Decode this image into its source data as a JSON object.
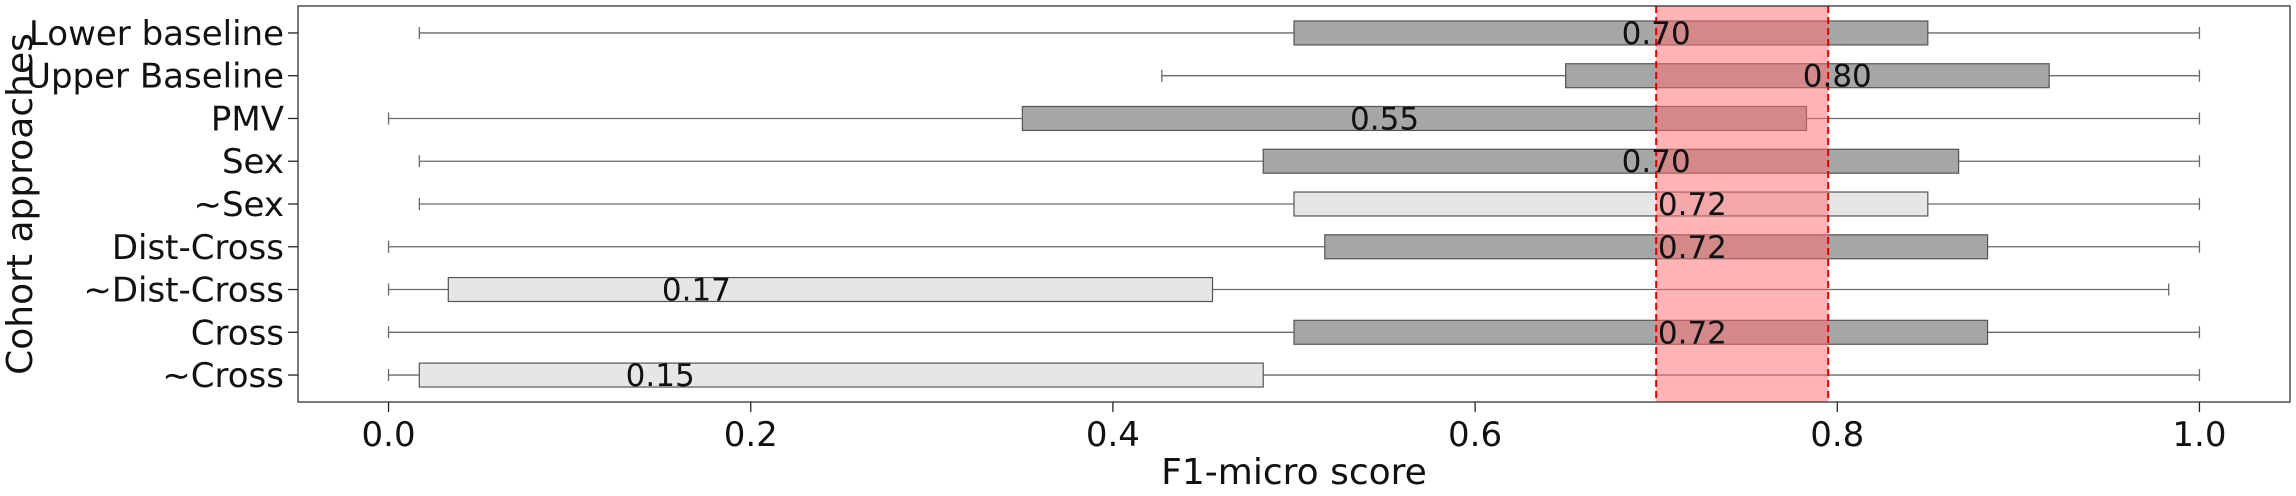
{
  "chart_data": {
    "type": "box",
    "orientation": "horizontal",
    "xlabel": "F1-micro score",
    "ylabel": "Cohort approaches",
    "xlim": [
      -0.05,
      1.05
    ],
    "xticks": [
      0.0,
      0.2,
      0.4,
      0.6,
      0.8,
      1.0
    ],
    "xtick_labels": [
      "0.0",
      "0.2",
      "0.4",
      "0.6",
      "0.8",
      "1.0"
    ],
    "highlight_band": {
      "x0": 0.7,
      "x1": 0.795,
      "color": "#ff6b6b"
    },
    "colors": {
      "dark_box": "#a6a6a6",
      "light_box": "#e6e6e6",
      "band_line": "#e00000"
    },
    "series": [
      {
        "label": "Lower baseline",
        "whisker_low": 0.017,
        "q1": 0.5,
        "q3": 0.85,
        "whisker_high": 1.0,
        "median_label": "0.70",
        "label_x": 0.7,
        "shade": "dark"
      },
      {
        "label": "Upper Baseline",
        "whisker_low": 0.427,
        "q1": 0.65,
        "q3": 0.917,
        "whisker_high": 1.0,
        "median_label": "0.80",
        "label_x": 0.8,
        "shade": "dark"
      },
      {
        "label": "PMV",
        "whisker_low": 0.0,
        "q1": 0.35,
        "q3": 0.783,
        "whisker_high": 1.0,
        "median_label": "0.55",
        "label_x": 0.55,
        "shade": "dark"
      },
      {
        "label": "Sex",
        "whisker_low": 0.017,
        "q1": 0.483,
        "q3": 0.867,
        "whisker_high": 1.0,
        "median_label": "0.70",
        "label_x": 0.7,
        "shade": "dark"
      },
      {
        "label": "∼Sex",
        "whisker_low": 0.017,
        "q1": 0.5,
        "q3": 0.85,
        "whisker_high": 1.0,
        "median_label": "0.72",
        "label_x": 0.72,
        "shade": "light"
      },
      {
        "label": "Dist-Cross",
        "whisker_low": 0.0,
        "q1": 0.517,
        "q3": 0.883,
        "whisker_high": 1.0,
        "median_label": "0.72",
        "label_x": 0.72,
        "shade": "dark"
      },
      {
        "label": "∼Dist-Cross",
        "whisker_low": 0.0,
        "q1": 0.033,
        "q3": 0.455,
        "whisker_high": 0.983,
        "median_label": "0.17",
        "label_x": 0.17,
        "shade": "light"
      },
      {
        "label": "Cross",
        "whisker_low": 0.0,
        "q1": 0.5,
        "q3": 0.883,
        "whisker_high": 1.0,
        "median_label": "0.72",
        "label_x": 0.72,
        "shade": "dark"
      },
      {
        "label": "∼Cross",
        "whisker_low": 0.0,
        "q1": 0.017,
        "q3": 0.483,
        "whisker_high": 1.0,
        "median_label": "0.15",
        "label_x": 0.15,
        "shade": "light"
      }
    ]
  }
}
